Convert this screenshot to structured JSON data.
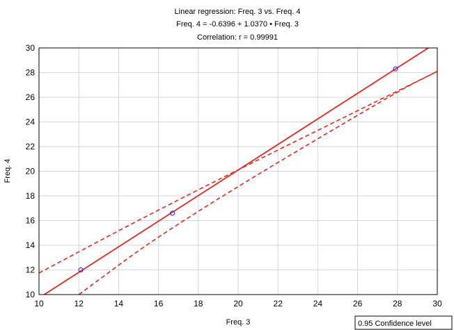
{
  "chart_data": {
    "type": "scatter",
    "title_lines": [
      "Linear regression: Freq. 3 vs. Freq. 4",
      "Freq. 4 = -0.6396 + 1.0370 • Freq. 3",
      "Correlation: r =  0.99991"
    ],
    "xlabel": "Freq. 3",
    "ylabel": "Freq. 4",
    "xlim": [
      10,
      30
    ],
    "ylim": [
      10,
      30
    ],
    "xticks": [
      "10",
      "12",
      "14",
      "16",
      "18",
      "20",
      "22",
      "24",
      "26",
      "28",
      "30"
    ],
    "yticks": [
      "10",
      "12",
      "14",
      "16",
      "18",
      "20",
      "22",
      "24",
      "26",
      "28",
      "30"
    ],
    "grid": true,
    "points": [
      {
        "x": 12.1,
        "y": 12.0
      },
      {
        "x": 16.7,
        "y": 16.6
      },
      {
        "x": 27.9,
        "y": 28.3
      }
    ],
    "regression": {
      "intercept": -0.6396,
      "slope": 1.037
    },
    "confidence_band": {
      "upper": [
        {
          "x": 10.0,
          "y": 11.75
        },
        {
          "x": 16.7,
          "y": 17.5
        },
        {
          "x": 30.0,
          "y": 28.1
        }
      ],
      "lower": [
        {
          "x": 12.0,
          "y": 10.0
        },
        {
          "x": 16.7,
          "y": 15.6
        },
        {
          "x": 27.9,
          "y": 26.4
        },
        {
          "x": 30.0,
          "y": 28.1
        }
      ]
    },
    "legend": {
      "text": "0.95 Confidence level",
      "position": "bottom-right"
    },
    "colors": {
      "line": "#e8261f",
      "point": "#1a1aff",
      "grid": "#d6d6d6",
      "frame": "#000000"
    }
  }
}
